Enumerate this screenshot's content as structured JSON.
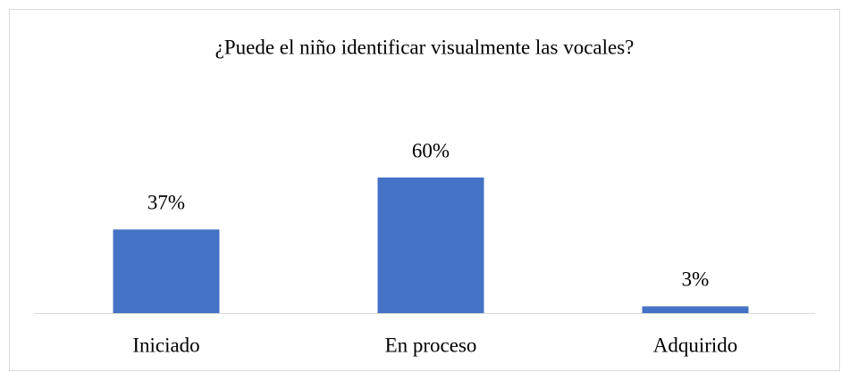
{
  "chart_data": {
    "type": "bar",
    "title": "¿Puede el niño identificar visualmente las vocales?",
    "categories": [
      "Iniciado",
      "En proceso",
      "Adquirido"
    ],
    "values": [
      37,
      60,
      3
    ],
    "value_labels": [
      "37%",
      "60%",
      "3%"
    ],
    "color": "#4472c4"
  }
}
